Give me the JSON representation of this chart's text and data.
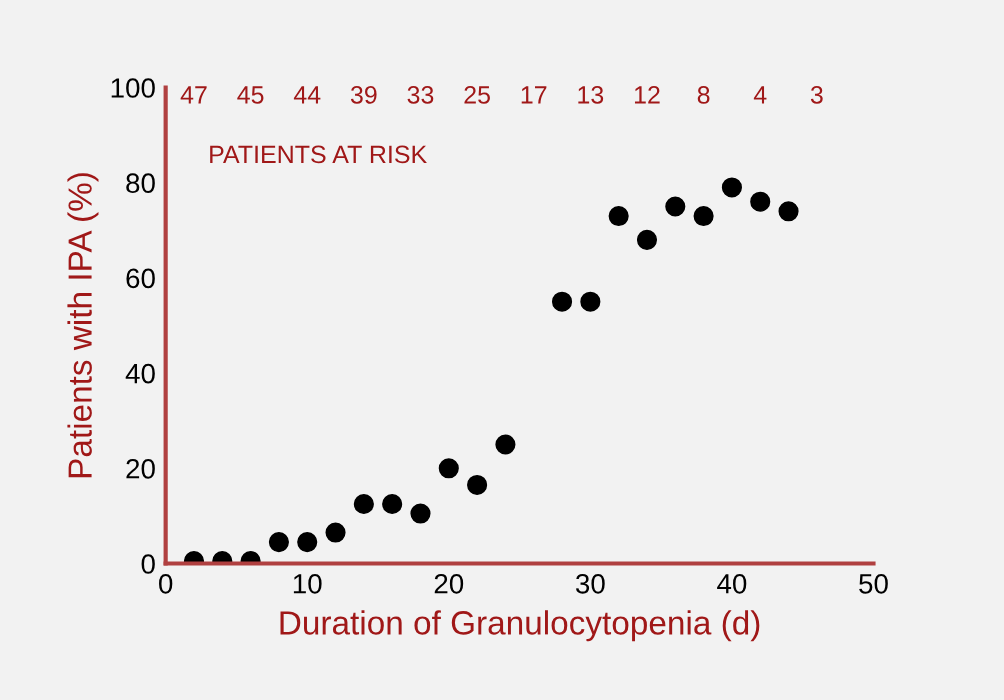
{
  "chart_data": {
    "type": "scatter",
    "xlabel": "Duration of Granulocytopenia (d)",
    "ylabel": "Patients with IPA (%)",
    "x": [
      2,
      4,
      6,
      8,
      10,
      12,
      14,
      16,
      18,
      20,
      22,
      24,
      28,
      30,
      32,
      34,
      36,
      38,
      40,
      42,
      44
    ],
    "values": [
      0.5,
      0.5,
      0.5,
      4.5,
      4.5,
      6.5,
      12.5,
      12.5,
      10.5,
      20,
      16.5,
      25,
      55,
      55,
      73,
      68,
      75,
      73,
      79,
      76,
      74
    ],
    "color": "#000000",
    "marker": "circle",
    "xlim": [
      0,
      50
    ],
    "xticks": [
      0,
      10,
      20,
      30,
      40,
      50
    ],
    "ylim": [
      0,
      100
    ],
    "yticks": [
      0,
      20,
      40,
      60,
      80,
      100
    ],
    "grid": false,
    "legend": false,
    "annotations": [
      "47",
      "45",
      "44",
      "39",
      "33",
      "25",
      "17",
      "13",
      "12",
      "8",
      "4",
      "3",
      "PATIENTS AT RISK"
    ]
  }
}
